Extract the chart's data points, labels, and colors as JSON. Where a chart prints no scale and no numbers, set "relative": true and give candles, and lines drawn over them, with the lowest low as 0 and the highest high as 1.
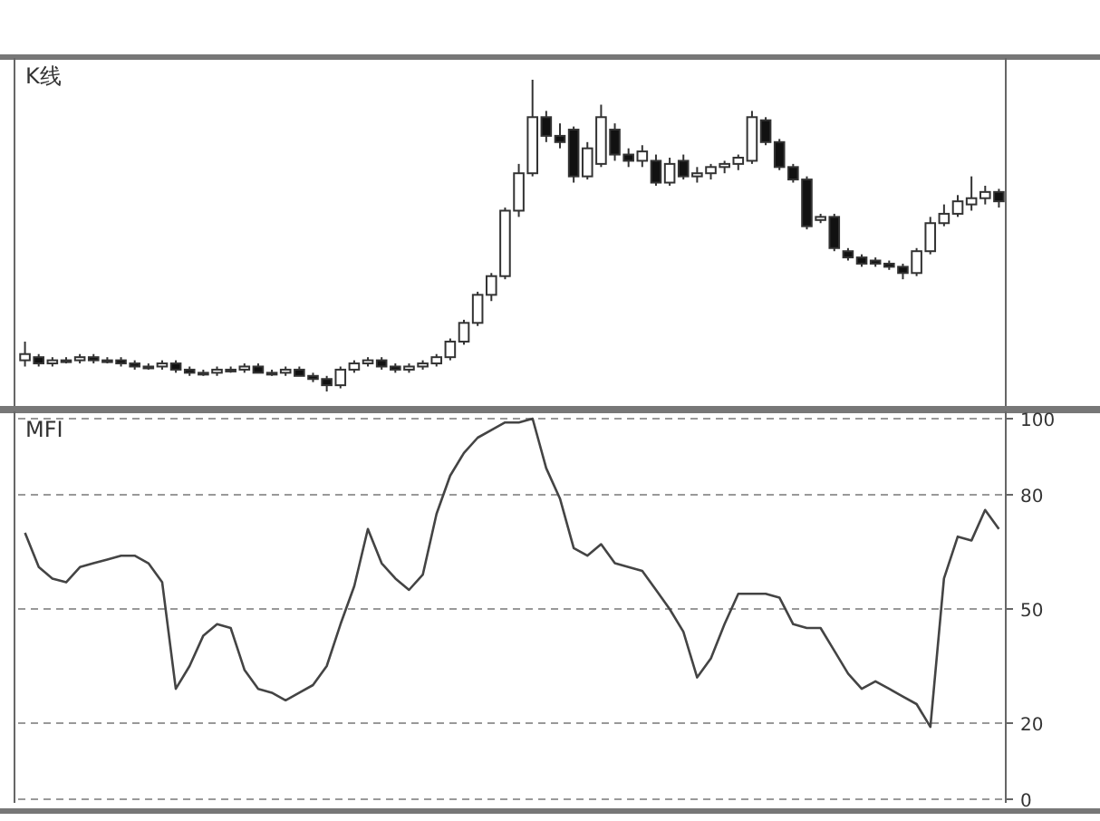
{
  "chart_data": [
    {
      "type": "candlestick",
      "title": "K线",
      "relative": true,
      "categories": [
        null,
        null,
        null,
        null,
        null,
        null,
        null,
        null,
        null,
        null,
        null,
        null,
        null,
        null,
        null,
        null,
        null,
        null,
        null,
        null,
        null,
        null,
        null,
        null,
        null,
        null,
        null,
        null,
        null,
        null,
        null,
        null,
        null,
        null,
        null,
        null,
        null,
        null,
        null,
        null,
        null,
        null,
        null,
        null,
        null,
        null,
        null,
        null,
        null,
        null,
        null,
        null,
        null,
        null,
        null,
        null,
        null,
        null,
        null,
        null,
        null,
        null,
        null,
        null,
        null,
        null,
        null,
        null,
        null,
        null,
        null,
        null
      ],
      "ohlc": [
        [
          0.1,
          0.16,
          0.08,
          0.12
        ],
        [
          0.11,
          0.12,
          0.08,
          0.09
        ],
        [
          0.09,
          0.11,
          0.08,
          0.1
        ],
        [
          0.1,
          0.11,
          0.09,
          0.1
        ],
        [
          0.1,
          0.12,
          0.09,
          0.11
        ],
        [
          0.11,
          0.12,
          0.09,
          0.1
        ],
        [
          0.1,
          0.11,
          0.09,
          0.1
        ],
        [
          0.1,
          0.11,
          0.08,
          0.09
        ],
        [
          0.09,
          0.1,
          0.07,
          0.08
        ],
        [
          0.08,
          0.09,
          0.07,
          0.08
        ],
        [
          0.08,
          0.1,
          0.07,
          0.09
        ],
        [
          0.09,
          0.1,
          0.06,
          0.07
        ],
        [
          0.07,
          0.08,
          0.05,
          0.06
        ],
        [
          0.06,
          0.07,
          0.05,
          0.06
        ],
        [
          0.06,
          0.08,
          0.05,
          0.07
        ],
        [
          0.07,
          0.08,
          0.06,
          0.07
        ],
        [
          0.07,
          0.09,
          0.06,
          0.08
        ],
        [
          0.08,
          0.09,
          0.06,
          0.06
        ],
        [
          0.06,
          0.07,
          0.05,
          0.06
        ],
        [
          0.06,
          0.08,
          0.05,
          0.07
        ],
        [
          0.07,
          0.08,
          0.05,
          0.05
        ],
        [
          0.05,
          0.06,
          0.03,
          0.04
        ],
        [
          0.04,
          0.05,
          0,
          0.02
        ],
        [
          0.02,
          0.08,
          0.01,
          0.07
        ],
        [
          0.07,
          0.1,
          0.06,
          0.09
        ],
        [
          0.09,
          0.11,
          0.08,
          0.1
        ],
        [
          0.1,
          0.11,
          0.07,
          0.08
        ],
        [
          0.08,
          0.09,
          0.06,
          0.07
        ],
        [
          0.07,
          0.09,
          0.06,
          0.08
        ],
        [
          0.08,
          0.1,
          0.07,
          0.09
        ],
        [
          0.09,
          0.12,
          0.08,
          0.11
        ],
        [
          0.11,
          0.17,
          0.1,
          0.16
        ],
        [
          0.16,
          0.23,
          0.15,
          0.22
        ],
        [
          0.22,
          0.32,
          0.21,
          0.31
        ],
        [
          0.31,
          0.38,
          0.29,
          0.37
        ],
        [
          0.37,
          0.59,
          0.36,
          0.58
        ],
        [
          0.58,
          0.73,
          0.56,
          0.7
        ],
        [
          0.7,
          1,
          0.69,
          0.88
        ],
        [
          0.88,
          0.9,
          0.8,
          0.82
        ],
        [
          0.82,
          0.86,
          0.78,
          0.8
        ],
        [
          0.84,
          0.85,
          0.67,
          0.69
        ],
        [
          0.69,
          0.8,
          0.68,
          0.78
        ],
        [
          0.73,
          0.92,
          0.72,
          0.88
        ],
        [
          0.84,
          0.86,
          0.74,
          0.76
        ],
        [
          0.76,
          0.78,
          0.72,
          0.74
        ],
        [
          0.74,
          0.79,
          0.72,
          0.77
        ],
        [
          0.74,
          0.76,
          0.66,
          0.67
        ],
        [
          0.67,
          0.75,
          0.66,
          0.73
        ],
        [
          0.74,
          0.76,
          0.68,
          0.69
        ],
        [
          0.69,
          0.72,
          0.67,
          0.7
        ],
        [
          0.7,
          0.73,
          0.68,
          0.72
        ],
        [
          0.72,
          0.74,
          0.7,
          0.73
        ],
        [
          0.73,
          0.76,
          0.71,
          0.75
        ],
        [
          0.74,
          0.9,
          0.73,
          0.88
        ],
        [
          0.87,
          0.88,
          0.79,
          0.8
        ],
        [
          0.8,
          0.81,
          0.71,
          0.72
        ],
        [
          0.72,
          0.73,
          0.67,
          0.68
        ],
        [
          0.68,
          0.69,
          0.52,
          0.53
        ],
        [
          0.55,
          0.57,
          0.54,
          0.56
        ],
        [
          0.56,
          0.57,
          0.45,
          0.46
        ],
        [
          0.45,
          0.46,
          0.42,
          0.43
        ],
        [
          0.43,
          0.44,
          0.4,
          0.41
        ],
        [
          0.42,
          0.43,
          0.4,
          0.41
        ],
        [
          0.41,
          0.42,
          0.39,
          0.4
        ],
        [
          0.4,
          0.41,
          0.36,
          0.38
        ],
        [
          0.38,
          0.46,
          0.37,
          0.45
        ],
        [
          0.45,
          0.56,
          0.44,
          0.54
        ],
        [
          0.54,
          0.6,
          0.53,
          0.57
        ],
        [
          0.57,
          0.63,
          0.56,
          0.61
        ],
        [
          0.6,
          0.69,
          0.58,
          0.62
        ],
        [
          0.62,
          0.66,
          0.6,
          0.64
        ],
        [
          0.64,
          0.65,
          0.59,
          0.61
        ]
      ]
    },
    {
      "type": "line",
      "title": "MFI",
      "tick_labels": "y",
      "grid": "y",
      "ylim": [
        0,
        100
      ],
      "yticks": [
        0,
        20,
        50,
        80,
        100
      ],
      "categories": [
        null,
        null,
        null,
        null,
        null,
        null,
        null,
        null,
        null,
        null,
        null,
        null,
        null,
        null,
        null,
        null,
        null,
        null,
        null,
        null,
        null,
        null,
        null,
        null,
        null,
        null,
        null,
        null,
        null,
        null,
        null,
        null,
        null,
        null,
        null,
        null,
        null,
        null,
        null,
        null,
        null,
        null,
        null,
        null,
        null,
        null,
        null,
        null,
        null,
        null,
        null,
        null,
        null,
        null,
        null,
        null,
        null,
        null,
        null,
        null,
        null,
        null,
        null,
        null,
        null,
        null,
        null,
        null,
        null,
        null,
        null,
        null
      ],
      "series": [
        {
          "color": "#444444",
          "values": [
            70,
            61,
            58,
            57,
            61,
            62,
            63,
            64,
            64,
            62,
            57,
            29,
            35,
            43,
            46,
            45,
            34,
            29,
            28,
            26,
            28,
            30,
            35,
            46,
            56,
            71,
            62,
            58,
            55,
            59,
            75,
            85,
            91,
            95,
            97,
            99,
            99,
            100,
            87,
            79,
            66,
            64,
            67,
            62,
            61,
            60,
            55,
            50,
            44,
            32,
            37,
            46,
            54,
            54,
            54,
            53,
            46,
            45,
            45,
            39,
            33,
            29,
            31,
            29,
            27,
            25,
            19,
            58,
            69,
            68,
            76,
            71
          ]
        }
      ]
    }
  ]
}
